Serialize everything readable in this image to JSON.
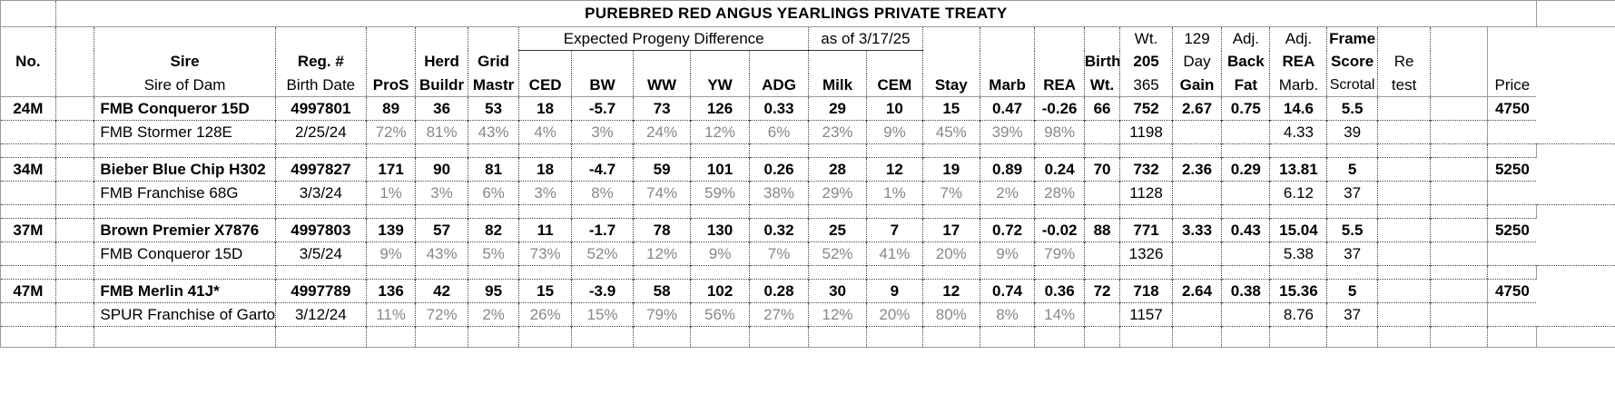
{
  "title": "PUREBRED RED ANGUS YEARLINGS PRIVATE TREATY",
  "header": {
    "epd_label": "Expected Progeny Difference",
    "as_of": "as of 3/17/25",
    "row1": {
      "wt": "Wt.",
      "day129": "129",
      "adj_back": "Adj.",
      "adj_rea": "Adj.",
      "frame": "Frame"
    },
    "row2": {
      "no": "No.",
      "sire": "Sire",
      "reg": "Reg. #",
      "herd": "Herd",
      "grid": "Grid",
      "birth": "Birth",
      "w205": "205",
      "day": "Day",
      "back": "Back",
      "rea": "REA",
      "score": "Score",
      "re": "Re"
    },
    "row3": {
      "sire_of_dam": "Sire of Dam",
      "birth_date": "Birth Date",
      "pros": "ProS",
      "buildr": "Buildr",
      "mastr": "Mastr",
      "ced": "CED",
      "bw": "BW",
      "ww": "WW",
      "yw": "YW",
      "adg": "ADG",
      "milk": "Milk",
      "cem": "CEM",
      "stay": "Stay",
      "marb": "Marb",
      "rea": "REA",
      "wt": "Wt.",
      "w365": "365",
      "gain": "Gain",
      "fat": "Fat",
      "marb2": "Marb.",
      "scrotal": "Scrotal",
      "test": "test",
      "price": "Price"
    }
  },
  "animals": [
    {
      "no": "24M",
      "sire": "FMB Conqueror 15D",
      "reg": "4997801",
      "pros": "89",
      "herd": "36",
      "grid": "53",
      "ced": "18",
      "bw": "-5.7",
      "ww": "73",
      "yw": "126",
      "adg": "0.33",
      "milk": "29",
      "cem": "10",
      "stay": "15",
      "marb": "0.47",
      "rea": "-0.26",
      "birth_wt": "66",
      "w205": "752",
      "gain": "2.67",
      "back_fat": "0.75",
      "adj_rea": "14.6",
      "frame": "5.5",
      "price": "4750",
      "dam": "FMB Stormer 128E",
      "birth_date": "2/25/24",
      "pct": [
        "72%",
        "81%",
        "43%",
        "4%",
        "3%",
        "24%",
        "12%",
        "6%",
        "23%",
        "9%",
        "45%",
        "39%",
        "98%"
      ],
      "w365": "1198",
      "marb_adj": "4.33",
      "scrotal": "39"
    },
    {
      "no": "34M",
      "sire": "Bieber Blue Chip H302",
      "reg": "4997827",
      "pros": "171",
      "herd": "90",
      "grid": "81",
      "ced": "18",
      "bw": "-4.7",
      "ww": "59",
      "yw": "101",
      "adg": "0.26",
      "milk": "28",
      "cem": "12",
      "stay": "19",
      "marb": "0.89",
      "rea": "0.24",
      "birth_wt": "70",
      "w205": "732",
      "gain": "2.36",
      "back_fat": "0.29",
      "adj_rea": "13.81",
      "frame": "5",
      "price": "5250",
      "dam": "FMB Franchise 68G",
      "birth_date": "3/3/24",
      "pct": [
        "1%",
        "3%",
        "6%",
        "3%",
        "8%",
        "74%",
        "59%",
        "38%",
        "29%",
        "1%",
        "7%",
        "2%",
        "28%"
      ],
      "w365": "1128",
      "marb_adj": "6.12",
      "scrotal": "37"
    },
    {
      "no": "37M",
      "sire": "Brown Premier X7876",
      "reg": "4997803",
      "pros": "139",
      "herd": "57",
      "grid": "82",
      "ced": "11",
      "bw": "-1.7",
      "ww": "78",
      "yw": "130",
      "adg": "0.32",
      "milk": "25",
      "cem": "7",
      "stay": "17",
      "marb": "0.72",
      "rea": "-0.02",
      "birth_wt": "88",
      "w205": "771",
      "gain": "3.33",
      "back_fat": "0.43",
      "adj_rea": "15.04",
      "frame": "5.5",
      "price": "5250",
      "dam": "FMB Conqueror 15D",
      "birth_date": "3/5/24",
      "pct": [
        "9%",
        "43%",
        "5%",
        "73%",
        "52%",
        "12%",
        "9%",
        "7%",
        "52%",
        "41%",
        "20%",
        "9%",
        "79%"
      ],
      "w365": "1326",
      "marb_adj": "5.38",
      "scrotal": "37"
    },
    {
      "no": "47M",
      "sire": "FMB Merlin 41J*",
      "reg": "4997789",
      "pros": "136",
      "herd": "42",
      "grid": "95",
      "ced": "15",
      "bw": "-3.9",
      "ww": "58",
      "yw": "102",
      "adg": "0.28",
      "milk": "30",
      "cem": "9",
      "stay": "12",
      "marb": "0.74",
      "rea": "0.36",
      "birth_wt": "72",
      "w205": "718",
      "gain": "2.64",
      "back_fat": "0.38",
      "adj_rea": "15.36",
      "frame": "5",
      "price": "4750",
      "dam": "SPUR Franchise of Garton",
      "birth_date": "3/12/24",
      "pct": [
        "11%",
        "72%",
        "2%",
        "26%",
        "15%",
        "79%",
        "56%",
        "27%",
        "12%",
        "20%",
        "80%",
        "8%",
        "14%"
      ],
      "w365": "1157",
      "marb_adj": "8.76",
      "scrotal": "37"
    }
  ]
}
